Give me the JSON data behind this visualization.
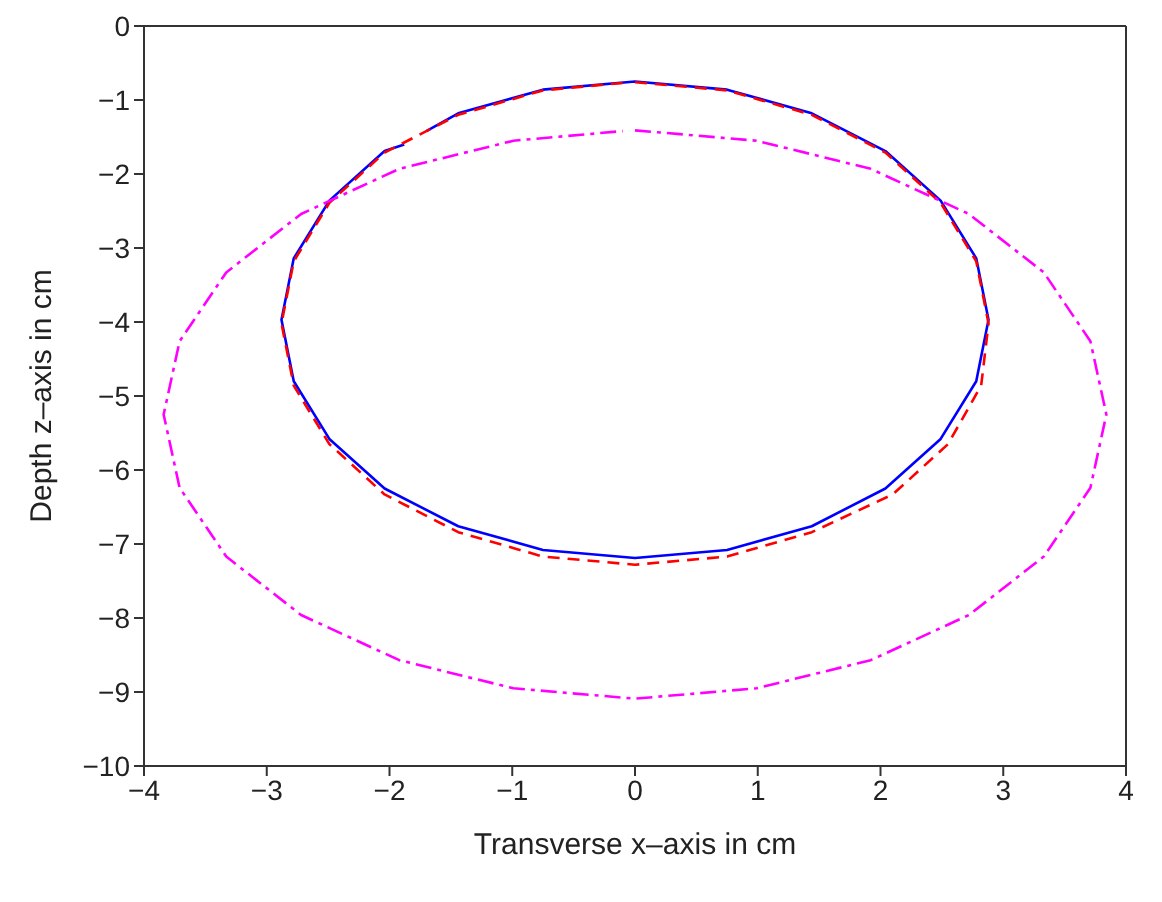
{
  "chart_data": {
    "type": "line",
    "xlabel": "Transverse x–axis in cm",
    "ylabel": "Depth z–axis in cm",
    "xlim": [
      -4,
      4
    ],
    "xticks": [
      -4,
      -3,
      -2,
      -1,
      0,
      1,
      2,
      3,
      4
    ],
    "ylim": [
      -10,
      0
    ],
    "yticks": [
      -10,
      -9,
      -8,
      -7,
      -6,
      -5,
      -4,
      -3,
      -2,
      -1,
      0
    ],
    "legend": false,
    "marker": "none",
    "series": [
      {
        "color": "#0000ff",
        "line_style": "solid",
        "x": [
          -1.7,
          -1.44,
          -0.75,
          0,
          0.75,
          1.44,
          2.04,
          2.49,
          2.78,
          2.88,
          2.78,
          2.49,
          2.04,
          1.44,
          0.75,
          0,
          -0.75,
          -1.44,
          -2.04,
          -2.49,
          -2.78,
          -2.88,
          -2.78,
          -2.49,
          -2.04,
          -1.88
        ],
        "values": [
          -1.42,
          -1.18,
          -0.86,
          -0.75,
          -0.86,
          -1.18,
          -1.69,
          -2.36,
          -3.14,
          -3.97,
          -4.8,
          -5.58,
          -6.25,
          -6.76,
          -7.08,
          -7.19,
          -7.08,
          -6.76,
          -6.25,
          -5.58,
          -4.8,
          -3.97,
          -3.14,
          -2.36,
          -1.69,
          -1.6
        ]
      },
      {
        "color": "#ff0000",
        "line_style": "dashed",
        "x": [
          0,
          0.75,
          1.44,
          2.04,
          2.49,
          2.78,
          2.88,
          2.82,
          2.55,
          2.1,
          1.44,
          0.75,
          0,
          -0.75,
          -1.44,
          -2.04,
          -2.49,
          -2.78,
          -2.88,
          -2.78,
          -2.49,
          -2.04,
          -1.44,
          -0.75,
          -0.1
        ],
        "values": [
          -0.76,
          -0.87,
          -1.2,
          -1.71,
          -2.39,
          -3.18,
          -4.02,
          -4.86,
          -5.65,
          -6.33,
          -6.84,
          -7.17,
          -7.28,
          -7.17,
          -6.84,
          -6.33,
          -5.65,
          -4.86,
          -4.02,
          -3.18,
          -2.39,
          -1.71,
          -1.2,
          -0.87,
          -0.77
        ]
      },
      {
        "color": "#ff00ff",
        "line_style": "dashdot",
        "x": [
          0,
          0.99,
          1.92,
          2.72,
          3.33,
          3.71,
          3.84,
          3.71,
          3.33,
          2.72,
          1.92,
          0.99,
          0,
          -0.99,
          -1.92,
          -2.72,
          -3.33,
          -3.71,
          -3.84,
          -3.71,
          -3.33,
          -2.72,
          -1.92,
          -0.99,
          -0.1
        ],
        "values": [
          -1.41,
          -1.55,
          -1.93,
          -2.54,
          -3.33,
          -4.26,
          -5.25,
          -6.24,
          -7.17,
          -7.96,
          -8.57,
          -8.95,
          -9.09,
          -8.95,
          -8.57,
          -7.96,
          -7.17,
          -6.24,
          -5.25,
          -4.26,
          -3.33,
          -2.54,
          -1.93,
          -1.55,
          -1.42
        ]
      }
    ]
  }
}
